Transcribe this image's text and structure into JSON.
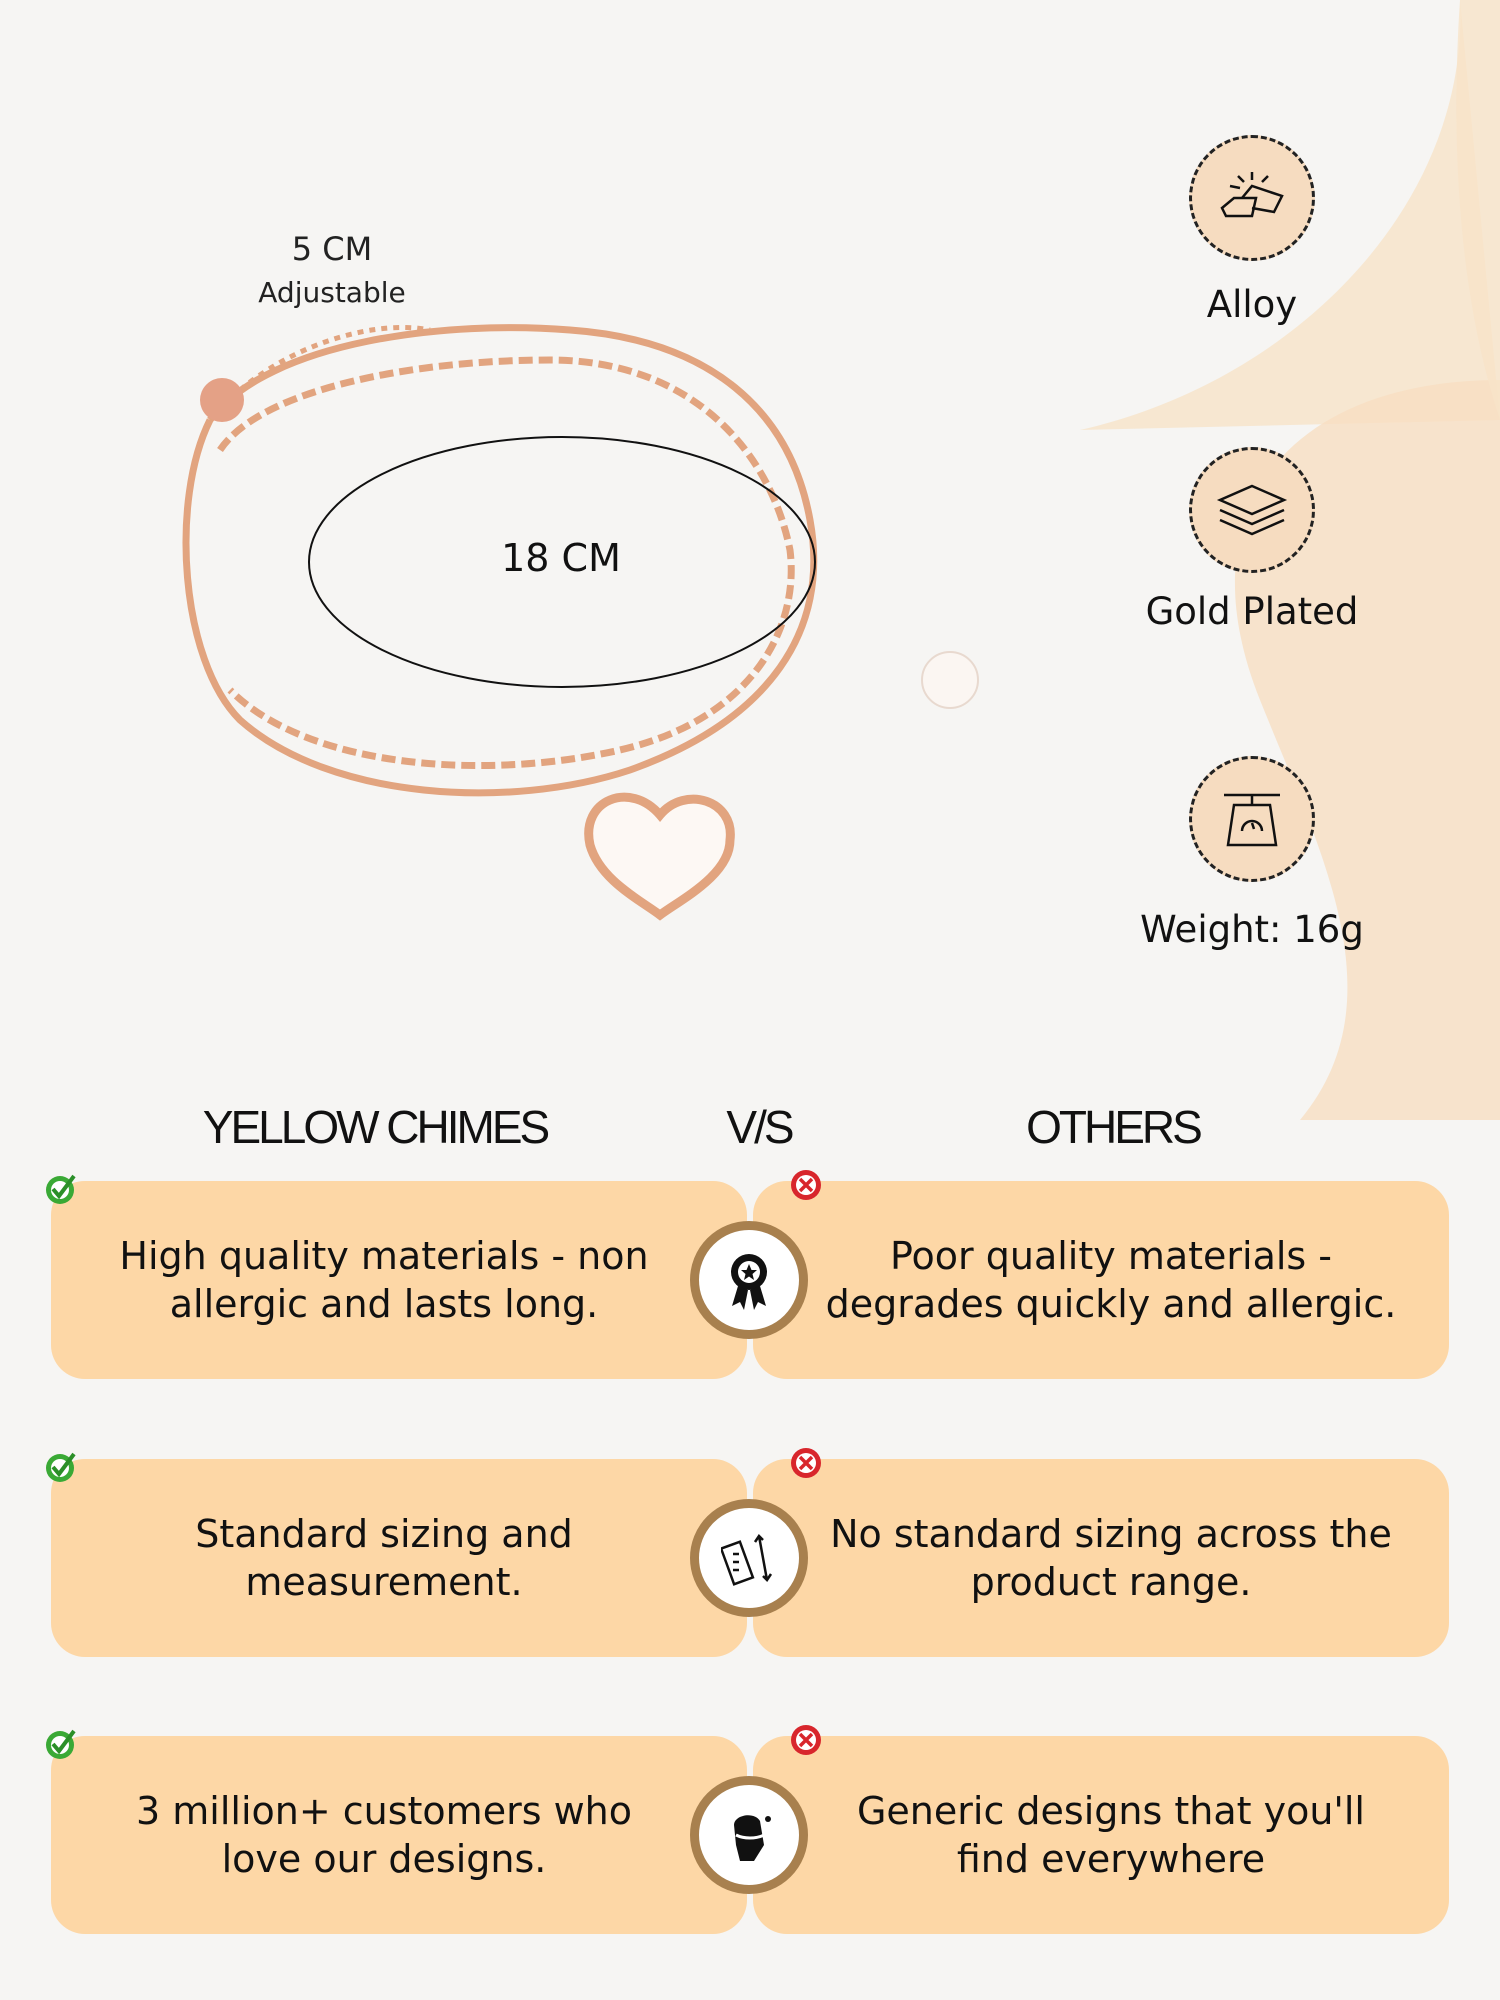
{
  "size": {
    "extension": "5 CM",
    "extension_note": "Adjustable",
    "length": "18 CM"
  },
  "features": [
    {
      "icon": "gold-bars-icon",
      "label": "Alloy"
    },
    {
      "icon": "layers-icon",
      "label": "Gold Plated"
    },
    {
      "icon": "scale-icon",
      "label": "Weight: 16g"
    }
  ],
  "comparison": {
    "brand_heading": "YELLOW CHIMES",
    "vs_heading": "V/S",
    "others_heading": "OTHERS",
    "rows": [
      {
        "icon": "award-badge-icon",
        "ours": "High quality materials - non allergic and lasts long.",
        "theirs": "Poor quality materials - degrades quickly and allergic."
      },
      {
        "icon": "ruler-icon",
        "ours": "Standard sizing and measurement.",
        "theirs": "No standard sizing across the product range."
      },
      {
        "icon": "hand-bracelet-icon",
        "ours": "3 million+ customers who love our designs.",
        "theirs": "Generic designs that you'll find everywhere"
      }
    ]
  },
  "colors": {
    "box": "#fdd7a6",
    "ring": "#a8804e",
    "check": "#3aa935",
    "cross": "#d8262c",
    "metal": "#e0a080"
  }
}
